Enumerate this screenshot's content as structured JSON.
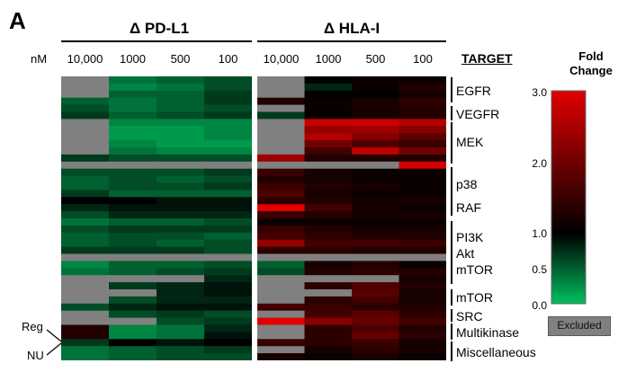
{
  "panel_letter": "A",
  "units_label": "nM",
  "groups": [
    {
      "title": "Δ PD-L1"
    },
    {
      "title": "Δ HLA-I"
    }
  ],
  "columns": [
    "10,000",
    "1000",
    "500",
    "100"
  ],
  "target_header": "TARGET",
  "targets": [
    {
      "label": "EGFR"
    },
    {
      "label": "VEGFR"
    },
    {
      "label": "MEK"
    },
    {
      "label": "p38"
    },
    {
      "label": "RAF"
    },
    {
      "label": "PI3K"
    },
    {
      "label": "Akt"
    },
    {
      "label": "mTOR"
    },
    {
      "label": "mTOR"
    },
    {
      "label": "SRC"
    },
    {
      "label": "Multikinase"
    },
    {
      "label": "Miscellaneous"
    }
  ],
  "side_labels": {
    "reg": "Reg",
    "nu": "NU"
  },
  "legend": {
    "title_line1": "Fold",
    "title_line2": "Change",
    "ticks": [
      "3.0",
      "2.0",
      "1.0",
      "0.5",
      "0.0"
    ],
    "excluded_label": "Excluded",
    "colors": {
      "high": "#e00000",
      "mid": "#000000",
      "low": "#00c060",
      "excluded": "#808080"
    }
  },
  "chart_data": {
    "type": "heatmap",
    "value_scale": {
      "min": 0.0,
      "max": 3.0,
      "center": 1.0,
      "ticks": [
        0.0,
        0.5,
        1.0,
        2.0,
        3.0
      ]
    },
    "excluded_marker": "X",
    "rows": 40,
    "pdl1": [
      [
        "X",
        0.4,
        0.5,
        0.6
      ],
      [
        "X",
        0.3,
        0.4,
        0.6
      ],
      [
        "X",
        0.5,
        0.5,
        0.7
      ],
      [
        0.5,
        0.4,
        0.5,
        0.7
      ],
      [
        0.6,
        0.4,
        0.5,
        0.6
      ],
      [
        0.7,
        0.5,
        0.6,
        0.7
      ],
      [
        "X",
        0.3,
        0.3,
        0.3
      ],
      [
        "X",
        0.2,
        0.2,
        0.3
      ],
      [
        "X",
        0.2,
        0.2,
        0.3
      ],
      [
        "X",
        0.3,
        0.2,
        0.2
      ],
      [
        "X",
        0.4,
        0.3,
        0.3
      ],
      [
        0.7,
        0.6,
        0.6,
        0.6
      ],
      [
        "X",
        "X",
        "X",
        "X"
      ],
      [
        0.6,
        0.6,
        0.6,
        0.7
      ],
      [
        0.5,
        0.6,
        0.5,
        0.6
      ],
      [
        0.5,
        0.6,
        0.6,
        0.7
      ],
      [
        0.7,
        0.5,
        0.5,
        0.5
      ],
      [
        1.0,
        1.0,
        0.9,
        0.9
      ],
      [
        0.8,
        0.9,
        0.9,
        0.9
      ],
      [
        0.6,
        0.8,
        0.8,
        0.8
      ],
      [
        0.4,
        0.5,
        0.5,
        0.6
      ],
      [
        0.6,
        0.7,
        0.7,
        0.7
      ],
      [
        0.5,
        0.6,
        0.6,
        0.5
      ],
      [
        0.5,
        0.6,
        0.5,
        0.6
      ],
      [
        0.7,
        0.7,
        0.7,
        0.6
      ],
      [
        "X",
        "X",
        "X",
        "X"
      ],
      [
        0.3,
        0.5,
        0.5,
        0.6
      ],
      [
        0.4,
        0.5,
        0.6,
        0.7
      ],
      [
        "X",
        "X",
        "X",
        0.8
      ],
      [
        "X",
        0.7,
        0.8,
        0.9
      ],
      [
        "X",
        "X",
        0.8,
        0.9
      ],
      [
        "X",
        0.6,
        0.8,
        0.8
      ],
      [
        0.6,
        0.8,
        0.9,
        0.9
      ],
      [
        "X",
        0.6,
        0.7,
        0.6
      ],
      [
        "X",
        "X",
        0.6,
        0.7
      ],
      [
        1.3,
        0.3,
        0.4,
        0.8
      ],
      [
        1.3,
        0.3,
        0.4,
        0.9
      ],
      [
        0.7,
        1.0,
        0.9,
        1.0
      ],
      [
        0.4,
        0.5,
        0.6,
        0.7
      ],
      [
        0.4,
        0.5,
        0.6,
        0.6
      ]
    ],
    "hla": [
      [
        "X",
        1.0,
        1.1,
        1.1
      ],
      [
        "X",
        0.8,
        1.1,
        1.3
      ],
      [
        "X",
        1.0,
        1.0,
        1.2
      ],
      [
        1.3,
        1.1,
        1.2,
        1.4
      ],
      [
        "X",
        1.1,
        1.2,
        1.3
      ],
      [
        0.7,
        1.1,
        1.2,
        1.3
      ],
      [
        "X",
        2.8,
        2.8,
        2.6
      ],
      [
        "X",
        2.3,
        2.4,
        2.2
      ],
      [
        "X",
        2.6,
        2.2,
        1.8
      ],
      [
        "X",
        2.0,
        1.7,
        1.5
      ],
      [
        "X",
        1.6,
        2.7,
        2.0
      ],
      [
        2.4,
        1.3,
        1.3,
        1.3
      ],
      [
        "X",
        "X",
        "X",
        2.9
      ],
      [
        1.5,
        1.2,
        1.1,
        1.1
      ],
      [
        1.3,
        1.2,
        1.1,
        1.1
      ],
      [
        1.5,
        1.3,
        1.2,
        1.1
      ],
      [
        1.7,
        1.2,
        1.1,
        1.1
      ],
      [
        1.4,
        1.3,
        1.2,
        1.2
      ],
      [
        3.0,
        1.6,
        1.2,
        1.1
      ],
      [
        1.5,
        1.3,
        1.2,
        1.2
      ],
      [
        1.1,
        1.1,
        1.1,
        1.1
      ],
      [
        1.5,
        1.3,
        1.2,
        1.2
      ],
      [
        1.6,
        1.4,
        1.3,
        1.3
      ],
      [
        2.3,
        1.6,
        1.6,
        1.5
      ],
      [
        1.4,
        1.4,
        1.3,
        1.3
      ],
      [
        "X",
        "X",
        "X",
        "X"
      ],
      [
        0.5,
        1.2,
        1.3,
        1.1
      ],
      [
        0.6,
        1.3,
        1.4,
        1.3
      ],
      [
        "X",
        "X",
        "X",
        1.2
      ],
      [
        "X",
        1.4,
        1.7,
        1.3
      ],
      [
        "X",
        "X",
        1.8,
        1.2
      ],
      [
        "X",
        1.4,
        1.6,
        1.2
      ],
      [
        1.6,
        1.5,
        1.4,
        1.3
      ],
      [
        "X",
        1.6,
        1.8,
        1.4
      ],
      [
        3.0,
        2.2,
        1.9,
        1.6
      ],
      [
        "X",
        1.4,
        1.7,
        1.3
      ],
      [
        "X",
        1.4,
        1.9,
        1.4
      ],
      [
        1.5,
        1.4,
        1.5,
        1.2
      ],
      [
        "X",
        1.2,
        1.4,
        1.2
      ],
      [
        1.2,
        1.1,
        1.2,
        1.1
      ]
    ]
  }
}
